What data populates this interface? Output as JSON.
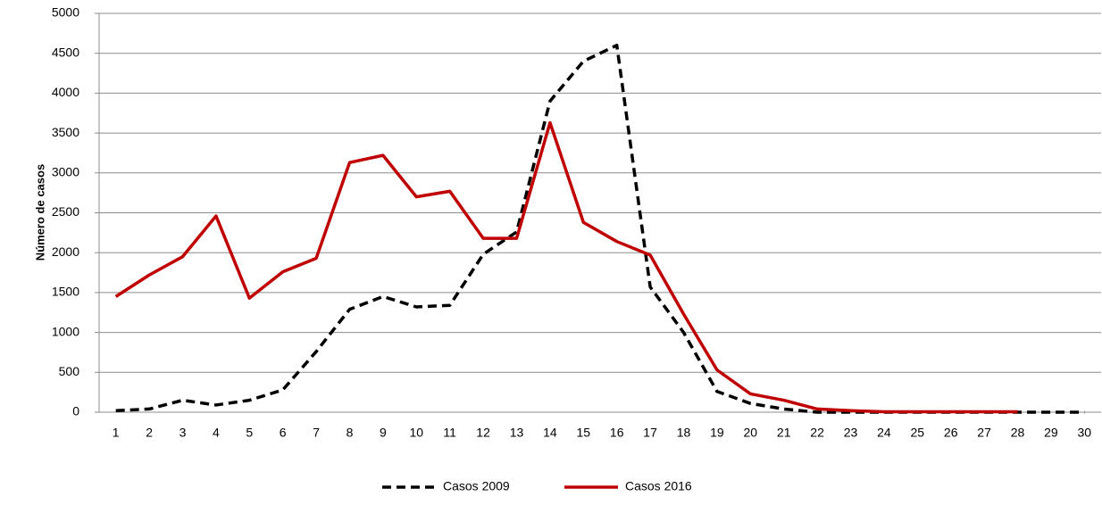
{
  "chart_data": {
    "type": "line",
    "y_label": "Número de casos",
    "categories": [
      "1",
      "2",
      "3",
      "4",
      "5",
      "6",
      "7",
      "8",
      "9",
      "10",
      "11",
      "12",
      "13",
      "14",
      "15",
      "16",
      "17",
      "18",
      "19",
      "20",
      "21",
      "22",
      "23",
      "24",
      "25",
      "26",
      "27",
      "28",
      "29",
      "30"
    ],
    "series": [
      {
        "name": "Casos 2009",
        "color": "#000000",
        "style": "dashed",
        "values": [
          20,
          40,
          150,
          90,
          150,
          280,
          760,
          1290,
          1450,
          1320,
          1340,
          1980,
          2260,
          3900,
          4400,
          4600,
          1570,
          1000,
          260,
          110,
          40,
          0,
          0,
          0,
          0,
          0,
          0,
          0,
          0,
          0
        ]
      },
      {
        "name": "Casos 2016",
        "color": "#c00000",
        "style": "solid",
        "values": [
          1450,
          1720,
          1950,
          2460,
          1430,
          1760,
          1930,
          3130,
          3220,
          2700,
          2770,
          2180,
          2180,
          3630,
          2380,
          2140,
          1970,
          1230,
          530,
          230,
          150,
          40,
          20,
          5,
          5,
          5,
          5,
          5,
          null,
          null
        ]
      }
    ],
    "ylim": [
      0,
      5000
    ],
    "yticks": [
      0,
      500,
      1000,
      1500,
      2000,
      2500,
      3000,
      3500,
      4000,
      4500,
      5000
    ],
    "grid": true,
    "legend": "bottom"
  }
}
